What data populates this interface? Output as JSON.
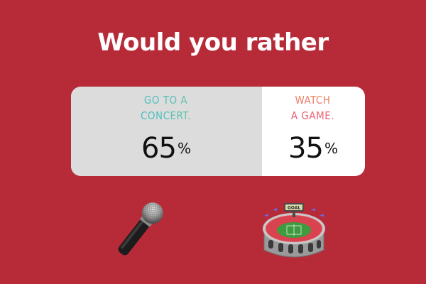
{
  "title": "Would you rather",
  "poll": {
    "options": [
      {
        "label": "GO TO A\nCONCERT.",
        "percent": 65,
        "percent_text": "65",
        "symbol": "%"
      },
      {
        "label": "WATCH\nA GAME.",
        "percent": 35,
        "percent_text": "35",
        "symbol": "%"
      }
    ]
  },
  "icons": [
    "microphone-icon",
    "stadium-icon"
  ],
  "colors": {
    "background": "#b72a38",
    "fill": "#dcdcdc",
    "card": "#ffffff"
  }
}
